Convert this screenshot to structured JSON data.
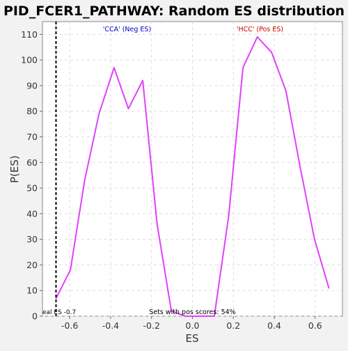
{
  "chart_data": {
    "type": "line",
    "title": "PID_FCER1_PATHWAY: Random ES distribution",
    "xlabel": "ES",
    "ylabel": "P(ES)",
    "xlim": [
      -0.7333,
      0.7333
    ],
    "ylim": [
      0,
      115
    ],
    "x_ticks": [
      -0.6,
      -0.4,
      -0.2,
      0.0,
      0.2,
      0.4,
      0.6
    ],
    "x_tick_labels": [
      "-0.6",
      "-0.4",
      "-0.2",
      "0.0",
      "0.2",
      "0.4",
      "0.6"
    ],
    "y_ticks": [
      0,
      10,
      20,
      30,
      40,
      50,
      60,
      70,
      80,
      90,
      100,
      110
    ],
    "y_tick_labels": [
      "0",
      "10",
      "20",
      "30",
      "40",
      "50",
      "60",
      "70",
      "80",
      "90",
      "100",
      "110"
    ],
    "grid": true,
    "series": [
      {
        "name": "Random ES distribution",
        "color": "#e040fb",
        "x": [
          -0.667,
          -0.597,
          -0.527,
          -0.457,
          -0.383,
          -0.313,
          -0.243,
          -0.173,
          -0.103,
          -0.033,
          0.037,
          0.107,
          0.177,
          0.247,
          0.317,
          0.387,
          0.457,
          0.527,
          0.597,
          0.667
        ],
        "y": [
          7,
          18,
          53,
          79,
          97,
          81,
          92,
          36,
          2,
          0,
          0,
          0,
          39,
          97,
          109,
          103,
          88,
          58,
          30,
          11
        ]
      }
    ],
    "real_es": {
      "value": -0.667,
      "label": "eal ES -0.7",
      "color": "#000000"
    },
    "annotations": {
      "neg_label": {
        "text": "'CCA' (Neg ES)",
        "x": -0.32,
        "color": "#0000cc"
      },
      "pos_label": {
        "text": "'HCC' (Pos ES)",
        "x": 0.33,
        "color": "#cc0000"
      },
      "pos_scores": {
        "text": "Sets with pos scores: 54%",
        "x": 0.0
      }
    }
  }
}
